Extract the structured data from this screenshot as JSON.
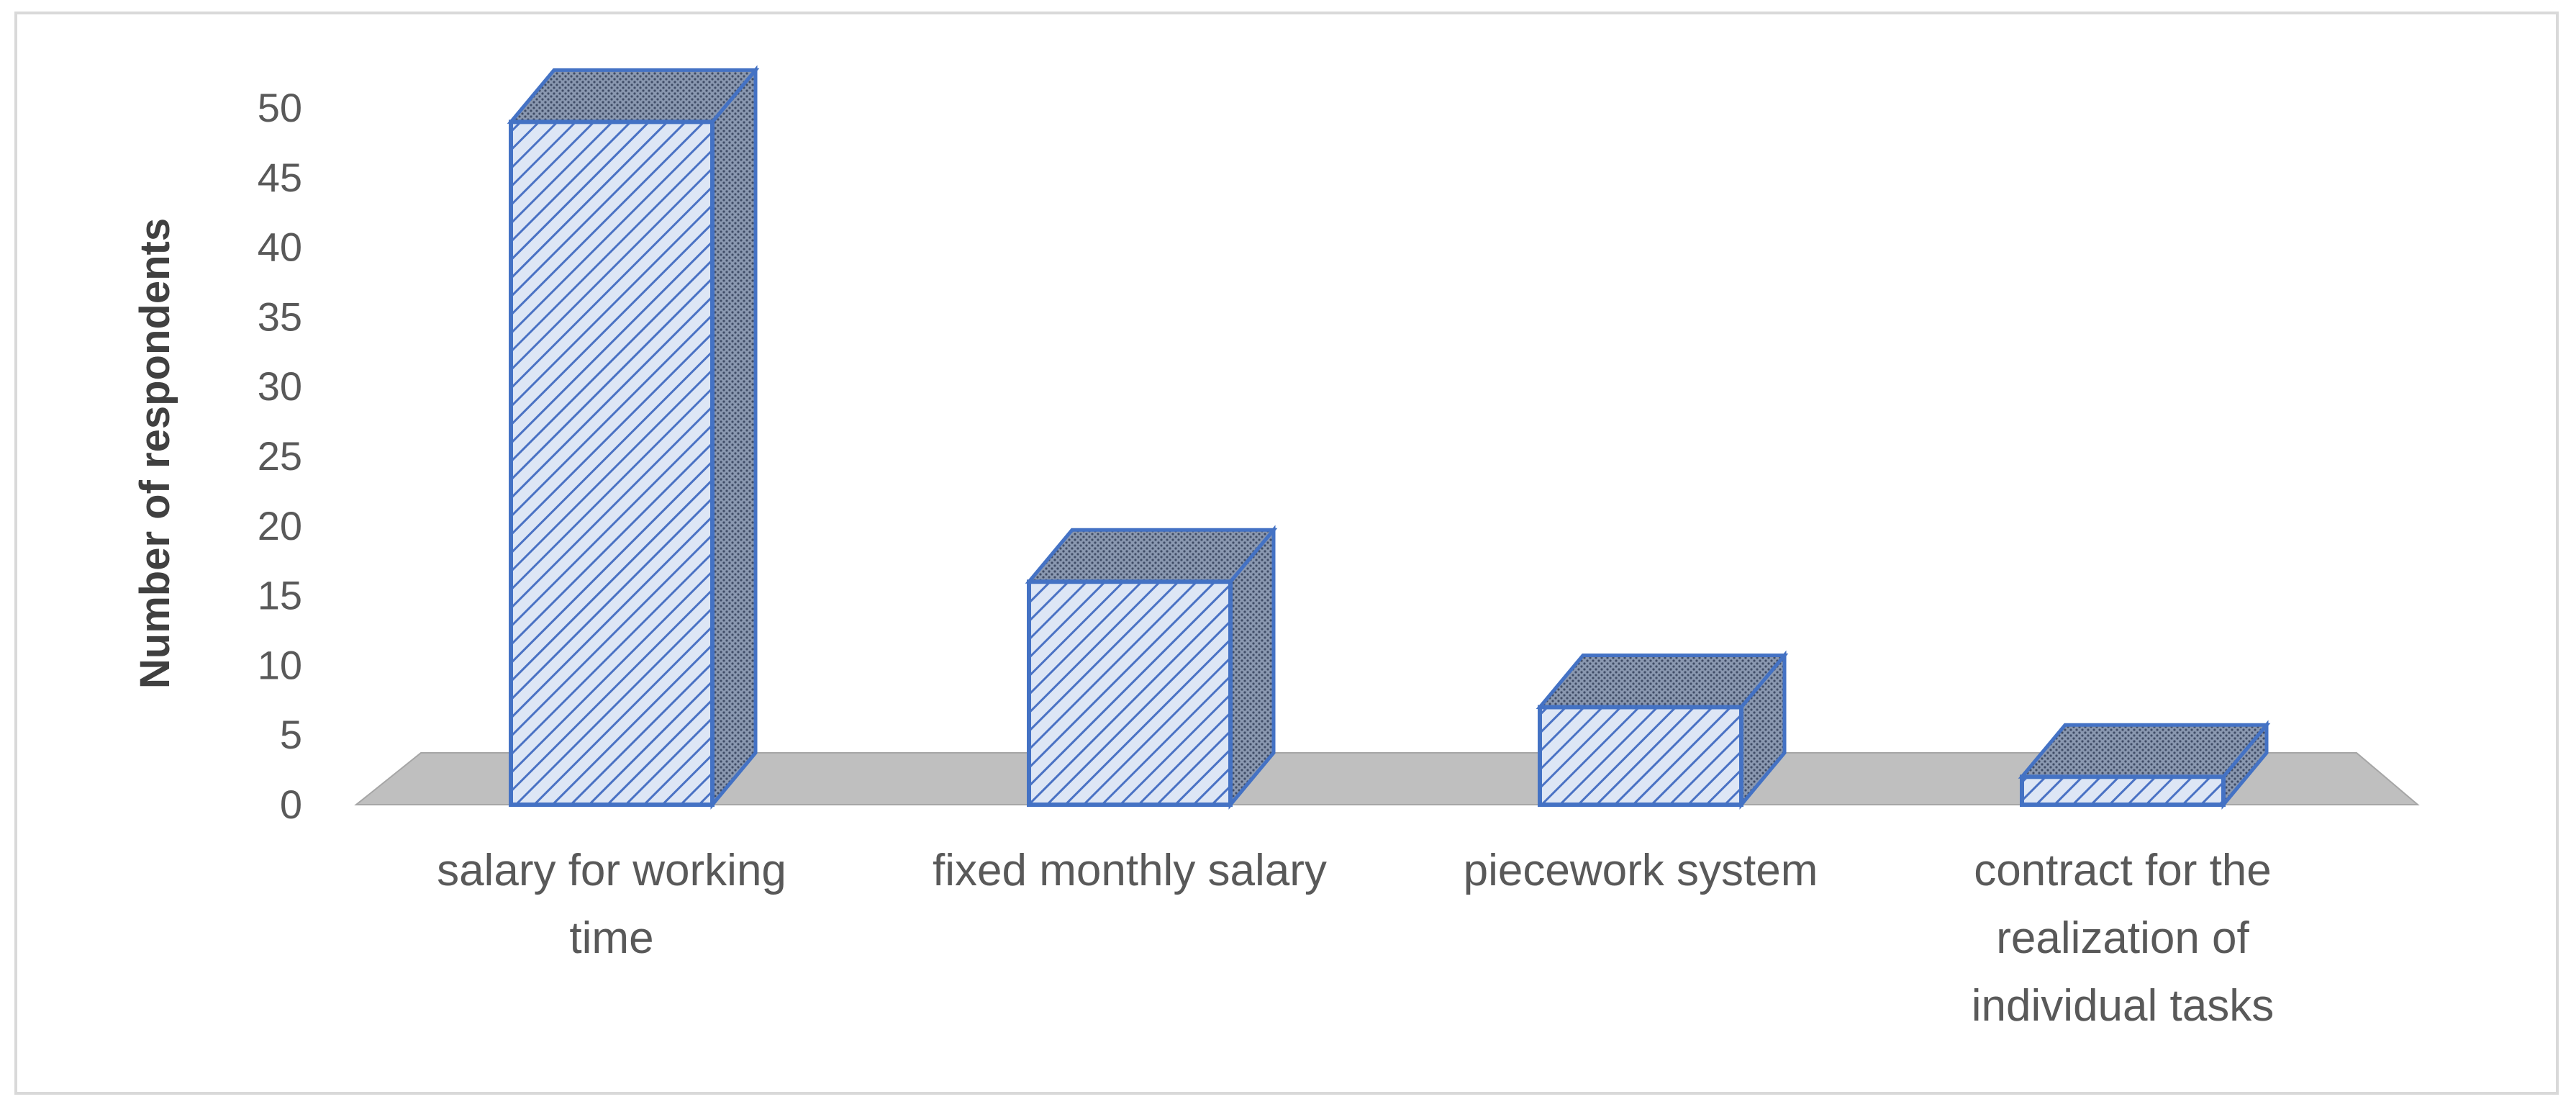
{
  "chart_data": {
    "type": "bar",
    "style": "3d-column",
    "categories": [
      [
        "salary for working",
        "time"
      ],
      [
        "fixed monthly salary"
      ],
      [
        "piecework system"
      ],
      [
        "contract for the",
        "realization of",
        "individual tasks"
      ]
    ],
    "values": [
      49,
      16,
      7,
      2
    ],
    "title": "",
    "xlabel": "",
    "ylabel": "Number of respondents",
    "ylim": [
      0,
      50
    ],
    "yticks": [
      0,
      5,
      10,
      15,
      20,
      25,
      30,
      35,
      40,
      45,
      50
    ],
    "grid": false,
    "legend": "none",
    "colors": {
      "bar_front_fill": "#dde6f5",
      "bar_hatch": "#4a72c4",
      "bar_outline": "#4472c4",
      "bar_side_fill": "#7f8fa8",
      "floor": "#bfbfbf"
    }
  }
}
